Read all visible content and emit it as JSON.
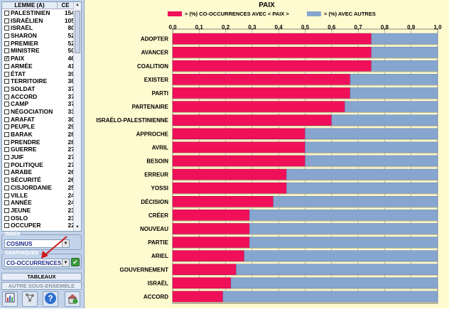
{
  "sidebar": {
    "table": {
      "col_lemma": "LEMME (A)",
      "col_count": "CE",
      "rows": [
        {
          "label": "PALESTINIEN",
          "value": "154",
          "checked": false
        },
        {
          "label": "ISRAÉLIEN",
          "value": "105",
          "checked": false
        },
        {
          "label": "ISRAËL",
          "value": "80",
          "checked": false
        },
        {
          "label": "SHARON",
          "value": "52",
          "checked": false
        },
        {
          "label": "PREMIER",
          "value": "52",
          "checked": false
        },
        {
          "label": "MINISTRE",
          "value": "50",
          "checked": false
        },
        {
          "label": "PAIX",
          "value": "46",
          "checked": true
        },
        {
          "label": "ARMÉE",
          "value": "41",
          "checked": false
        },
        {
          "label": "ÉTAT",
          "value": "39",
          "checked": false
        },
        {
          "label": "TERRITOIRE",
          "value": "38",
          "checked": false
        },
        {
          "label": "SOLDAT",
          "value": "37",
          "checked": false
        },
        {
          "label": "ACCORD",
          "value": "37",
          "checked": false
        },
        {
          "label": "CAMP",
          "value": "37",
          "checked": false
        },
        {
          "label": "NÉGOCIATION",
          "value": "33",
          "checked": false
        },
        {
          "label": "ARAFAT",
          "value": "30",
          "checked": false
        },
        {
          "label": "PEUPLE",
          "value": "29",
          "checked": false
        },
        {
          "label": "BARAK",
          "value": "28",
          "checked": false
        },
        {
          "label": "PRENDRE",
          "value": "28",
          "checked": false
        },
        {
          "label": "GUERRE",
          "value": "27",
          "checked": false
        },
        {
          "label": "JUIF",
          "value": "27",
          "checked": false
        },
        {
          "label": "POLITIQUE",
          "value": "27",
          "checked": false
        },
        {
          "label": "ARABE",
          "value": "26",
          "checked": false
        },
        {
          "label": "SÉCURITÉ",
          "value": "26",
          "checked": false
        },
        {
          "label": "CISJORDANIE",
          "value": "25",
          "checked": false
        },
        {
          "label": "VILLE",
          "value": "24",
          "checked": false
        },
        {
          "label": "ANNÉE",
          "value": "24",
          "checked": false
        },
        {
          "label": "JEUNE",
          "value": "23",
          "checked": false
        },
        {
          "label": "OSLO",
          "value": "23",
          "checked": false
        },
        {
          "label": "OCCUPER",
          "value": "22",
          "checked": false
        }
      ]
    },
    "index_group": {
      "title": "INDEX",
      "selected": "COSINUS"
    },
    "graph_group": {
      "title": "GRAPHIQUES",
      "selected": "CO-OCCURRENCES"
    },
    "buttons": {
      "tables": "TABLEAUX",
      "subset": "AUTRE SOUS-ENSEMBLE"
    },
    "icons": [
      "report-icon",
      "network-icon",
      "help-icon",
      "home-icon"
    ]
  },
  "chart_data": {
    "type": "bar",
    "orientation": "horizontal",
    "stacked": true,
    "title": "PAIX",
    "legend_placement": "top",
    "xlim": [
      0,
      1
    ],
    "x_ticks": [
      "0,0",
      "0,1",
      "0,2",
      "0,3",
      "0,4",
      "0,5",
      "0,6",
      "0,7",
      "0,8",
      "0,9",
      "1,0"
    ],
    "grid": true,
    "categories": [
      "ADOPTER",
      "AVANCER",
      "COALITION",
      "EXISTER",
      "PARTI",
      "PARTENAIRE",
      "ISRAÉLO-PALESTINIENNE",
      "APPROCHE",
      "AVRIL",
      "BESOIN",
      "ERREUR",
      "YOSSI",
      "DÉCISION",
      "CRÉER",
      "NOUVEAU",
      "PARTIE",
      "ARIEL",
      "GOUVERNEMENT",
      "ISRAËL",
      "ACCORD"
    ],
    "series": [
      {
        "name": "= (%) CO-OCCURRENCES AVEC < PAIX >",
        "color": "#f0105a",
        "values": [
          0.75,
          0.75,
          0.75,
          0.67,
          0.67,
          0.65,
          0.6,
          0.5,
          0.5,
          0.5,
          0.43,
          0.43,
          0.38,
          0.29,
          0.29,
          0.29,
          0.27,
          0.24,
          0.22,
          0.19
        ]
      },
      {
        "name": "= (%) AVEC AUTRES",
        "color": "#87a6cf",
        "values": [
          0.25,
          0.25,
          0.25,
          0.33,
          0.33,
          0.35,
          0.4,
          0.5,
          0.5,
          0.5,
          0.57,
          0.57,
          0.62,
          0.71,
          0.71,
          0.71,
          0.73,
          0.76,
          0.78,
          0.81
        ]
      }
    ]
  }
}
